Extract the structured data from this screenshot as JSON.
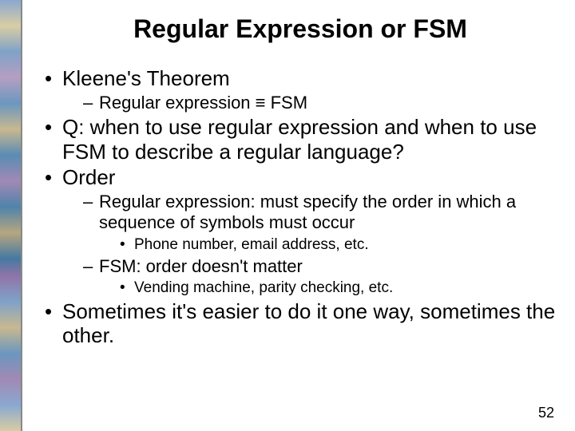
{
  "title": "Regular Expression or FSM",
  "bullets": {
    "b1": "Kleene's Theorem",
    "b1_1": "Regular expression ≡ FSM",
    "b2": "Q: when to use regular expression and when to use FSM to describe a regular language?",
    "b3": "Order",
    "b3_1": "Regular expression: must specify the order in which a sequence of symbols must occur",
    "b3_1_1": "Phone number, email address, etc.",
    "b3_2": "FSM: order doesn't matter",
    "b3_2_1": "Vending machine, parity checking, etc.",
    "b4": "Sometimes it's easier to do it one way, sometimes the other."
  },
  "page_number": "52",
  "colors": {
    "text": "#000000",
    "background": "#ffffff"
  },
  "fonts": {
    "title_size": 32,
    "l1_size": 26,
    "l2_size": 22,
    "l3_size": 19
  }
}
